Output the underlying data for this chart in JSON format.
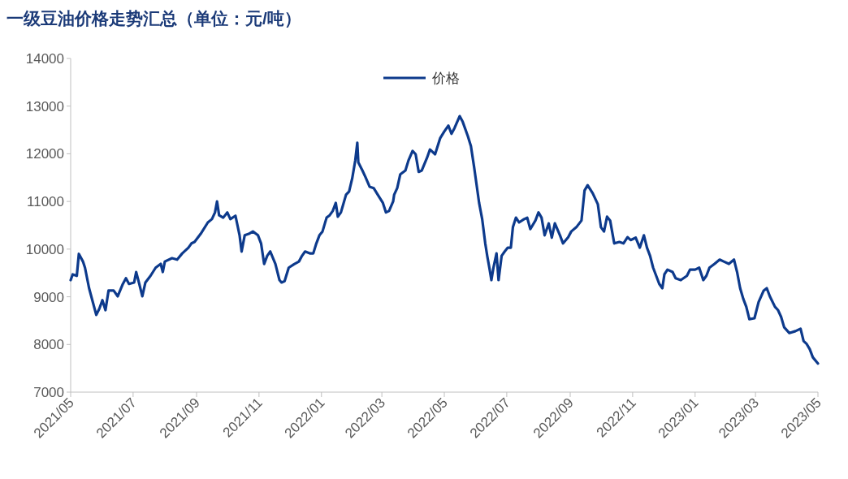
{
  "chart_data": {
    "type": "line",
    "title": "一级豆油价格走势汇总（单位：元/吨）",
    "legend": "top",
    "line_style": "solid",
    "xlim": [
      "2021-05-01",
      "2023-05-01"
    ],
    "xticks": [
      {
        "value": "2021-05",
        "label": "2021/05"
      },
      {
        "value": "2021-07",
        "label": "2021/07"
      },
      {
        "value": "2021-09",
        "label": "2021/09"
      },
      {
        "value": "2021-11",
        "label": "2021/11"
      },
      {
        "value": "2022-01",
        "label": "2022/01"
      },
      {
        "value": "2022-03",
        "label": "2022/03"
      },
      {
        "value": "2022-05",
        "label": "2022/05"
      },
      {
        "value": "2022-07",
        "label": "2022/07"
      },
      {
        "value": "2022-09",
        "label": "2022/09"
      },
      {
        "value": "2022-11",
        "label": "2022/11"
      },
      {
        "value": "2023-01",
        "label": "2023/01"
      },
      {
        "value": "2023-03",
        "label": "2023/03"
      },
      {
        "value": "2023-05",
        "label": "2023/05"
      }
    ],
    "ylim": [
      7000,
      14000
    ],
    "yticks": [
      7000,
      8000,
      9000,
      10000,
      11000,
      12000,
      13000,
      14000
    ],
    "x": [
      "2021-05-01",
      "2021-05-03",
      "2021-05-07",
      "2021-05-09",
      "2021-05-13",
      "2021-05-15",
      "2021-05-19",
      "2021-05-26",
      "2021-05-29",
      "2021-06-01",
      "2021-06-04",
      "2021-06-07",
      "2021-06-12",
      "2021-06-16",
      "2021-06-21",
      "2021-06-24",
      "2021-06-27",
      "2021-07-02",
      "2021-07-04",
      "2021-07-07",
      "2021-07-10",
      "2021-07-13",
      "2021-07-18",
      "2021-07-23",
      "2021-07-28",
      "2021-07-30",
      "2021-08-01",
      "2021-08-08",
      "2021-08-13",
      "2021-08-18",
      "2021-08-24",
      "2021-08-27",
      "2021-08-30",
      "2021-09-05",
      "2021-09-12",
      "2021-09-16",
      "2021-09-19",
      "2021-09-21",
      "2021-09-23",
      "2021-09-27",
      "2021-10-01",
      "2021-10-04",
      "2021-10-09",
      "2021-10-13",
      "2021-10-15",
      "2021-10-18",
      "2021-10-22",
      "2021-10-26",
      "2021-10-31",
      "2021-11-03",
      "2021-11-06",
      "2021-11-09",
      "2021-11-12",
      "2021-11-17",
      "2021-11-21",
      "2021-11-23",
      "2021-11-26",
      "2021-11-30",
      "2021-12-05",
      "2021-12-10",
      "2021-12-13",
      "2021-12-16",
      "2021-12-21",
      "2021-12-24",
      "2021-12-27",
      "2021-12-30",
      "2022-01-02",
      "2022-01-06",
      "2022-01-09",
      "2022-01-12",
      "2022-01-15",
      "2022-01-17",
      "2022-01-20",
      "2022-01-25",
      "2022-01-28",
      "2022-01-31",
      "2022-02-03",
      "2022-02-05",
      "2022-02-06",
      "2022-02-10",
      "2022-02-13",
      "2022-02-17",
      "2022-02-21",
      "2022-02-25",
      "2022-03-02",
      "2022-03-05",
      "2022-03-08",
      "2022-03-12",
      "2022-03-13",
      "2022-03-16",
      "2022-03-19",
      "2022-03-24",
      "2022-03-27",
      "2022-03-31",
      "2022-04-03",
      "2022-04-06",
      "2022-04-09",
      "2022-04-14",
      "2022-04-17",
      "2022-04-22",
      "2022-04-27",
      "2022-05-01",
      "2022-05-05",
      "2022-05-08",
      "2022-05-11",
      "2022-05-16",
      "2022-05-19",
      "2022-05-24",
      "2022-05-27",
      "2022-05-30",
      "2022-06-04",
      "2022-06-07",
      "2022-06-10",
      "2022-06-12",
      "2022-06-14",
      "2022-06-16",
      "2022-06-18",
      "2022-06-21",
      "2022-06-23",
      "2022-06-26",
      "2022-06-29",
      "2022-07-02",
      "2022-07-05",
      "2022-07-07",
      "2022-07-10",
      "2022-07-13",
      "2022-07-18",
      "2022-07-21",
      "2022-07-24",
      "2022-07-29",
      "2022-08-01",
      "2022-08-04",
      "2022-08-07",
      "2022-08-11",
      "2022-08-14",
      "2022-08-17",
      "2022-08-22",
      "2022-08-25",
      "2022-08-30",
      "2022-09-02",
      "2022-09-07",
      "2022-09-12",
      "2022-09-15",
      "2022-09-18",
      "2022-09-23",
      "2022-09-28",
      "2022-10-01",
      "2022-10-04",
      "2022-10-07",
      "2022-10-10",
      "2022-10-14",
      "2022-10-19",
      "2022-10-23",
      "2022-10-27",
      "2022-10-30",
      "2022-11-04",
      "2022-11-08",
      "2022-11-12",
      "2022-11-15",
      "2022-11-18",
      "2022-11-21",
      "2022-11-24",
      "2022-11-27",
      "2022-11-30",
      "2022-12-02",
      "2022-12-05",
      "2022-12-10",
      "2022-12-13",
      "2022-12-18",
      "2022-12-24",
      "2022-12-27",
      "2023-01-01",
      "2023-01-05",
      "2023-01-09",
      "2023-01-12",
      "2023-01-15",
      "2023-01-20",
      "2023-01-25",
      "2023-01-29",
      "2023-02-03",
      "2023-02-08",
      "2023-02-11",
      "2023-02-14",
      "2023-02-17",
      "2023-02-20",
      "2023-02-23",
      "2023-02-28",
      "2023-03-04",
      "2023-03-09",
      "2023-03-12",
      "2023-03-15",
      "2023-03-20",
      "2023-03-23",
      "2023-03-26",
      "2023-03-29",
      "2023-04-03",
      "2023-04-09",
      "2023-04-14",
      "2023-04-17",
      "2023-04-20",
      "2023-04-23",
      "2023-04-26",
      "2023-05-01"
    ],
    "series": [
      {
        "name": "价格",
        "color": "#0d3a8c",
        "values": [
          9350,
          9470,
          9440,
          9900,
          9740,
          9610,
          9180,
          8620,
          8750,
          8930,
          8720,
          9130,
          9130,
          9010,
          9270,
          9390,
          9270,
          9300,
          9520,
          9270,
          9010,
          9300,
          9440,
          9610,
          9690,
          9520,
          9740,
          9810,
          9780,
          9910,
          10030,
          10120,
          10150,
          10320,
          10560,
          10630,
          10770,
          11000,
          10710,
          10660,
          10770,
          10630,
          10700,
          10290,
          9950,
          10290,
          10320,
          10370,
          10290,
          10120,
          9690,
          9860,
          9950,
          9690,
          9350,
          9300,
          9330,
          9610,
          9680,
          9740,
          9860,
          9950,
          9910,
          9910,
          10120,
          10290,
          10370,
          10660,
          10710,
          10800,
          10970,
          10680,
          10770,
          11140,
          11210,
          11480,
          11860,
          12230,
          11820,
          11650,
          11510,
          11310,
          11280,
          11140,
          10970,
          10770,
          10800,
          11000,
          11140,
          11280,
          11570,
          11650,
          11860,
          12060,
          11990,
          11620,
          11650,
          11910,
          12090,
          11990,
          12330,
          12470,
          12590,
          12420,
          12540,
          12790,
          12670,
          12370,
          12160,
          11740,
          10970,
          10630,
          10120,
          9850,
          9610,
          9350,
          9610,
          9910,
          9350,
          9860,
          9950,
          10030,
          10030,
          10460,
          10660,
          10560,
          10630,
          10660,
          10420,
          10600,
          10770,
          10660,
          10290,
          10540,
          10240,
          10540,
          10290,
          10120,
          10250,
          10370,
          10460,
          10600,
          11230,
          11340,
          11170,
          10940,
          10460,
          10370,
          10680,
          10600,
          10120,
          10150,
          10120,
          10250,
          10190,
          10240,
          10030,
          10290,
          10030,
          9860,
          9610,
          9440,
          9270,
          9180,
          9470,
          9570,
          9520,
          9390,
          9350,
          9440,
          9570,
          9570,
          9610,
          9350,
          9440,
          9610,
          9690,
          9780,
          9740,
          9690,
          9780,
          9520,
          9180,
          8960,
          8790,
          8530,
          8550,
          8890,
          9130,
          9180,
          9010,
          8790,
          8720,
          8580,
          8360,
          8240,
          8280,
          8330,
          8070,
          8010,
          7900,
          7730,
          7600
        ]
      }
    ]
  }
}
